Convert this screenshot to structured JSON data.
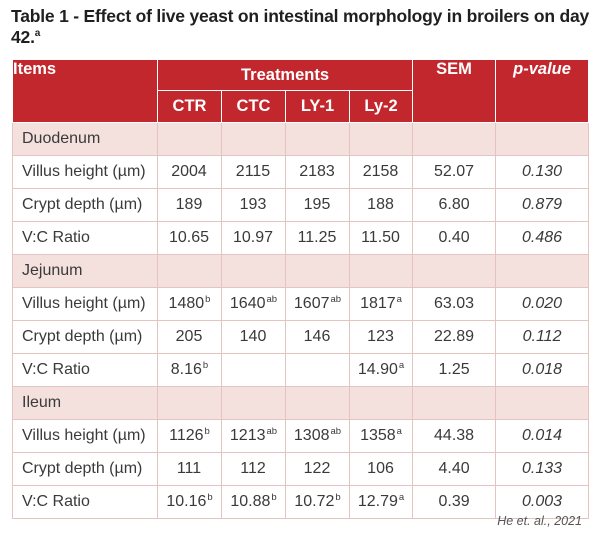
{
  "title": {
    "text": "Table 1 - Effect of live yeast on intestinal morphology in broilers on day 42.",
    "sup": "a"
  },
  "header": {
    "items": "Items",
    "treatments": "Treatments",
    "sem": "SEM",
    "pvalue": "p-value",
    "cols": [
      "CTR",
      "CTC",
      "LY-1",
      "Ly-2"
    ]
  },
  "sections": [
    {
      "name": "Duodenum",
      "rows": [
        {
          "label": "Villus height (µm)",
          "cells": [
            {
              "v": "2004",
              "s": ""
            },
            {
              "v": "2115",
              "s": ""
            },
            {
              "v": "2183",
              "s": ""
            },
            {
              "v": "2158",
              "s": ""
            }
          ],
          "sem": "52.07",
          "p": "0.130"
        },
        {
          "label": "Crypt depth (µm)",
          "cells": [
            {
              "v": "189",
              "s": ""
            },
            {
              "v": "193",
              "s": ""
            },
            {
              "v": "195",
              "s": ""
            },
            {
              "v": "188",
              "s": ""
            }
          ],
          "sem": "6.80",
          "p": "0.879"
        },
        {
          "label": "V:C Ratio",
          "cells": [
            {
              "v": "10.65",
              "s": ""
            },
            {
              "v": "10.97",
              "s": ""
            },
            {
              "v": "11.25",
              "s": ""
            },
            {
              "v": "11.50",
              "s": ""
            }
          ],
          "sem": "0.40",
          "p": "0.486"
        }
      ]
    },
    {
      "name": "Jejunum",
      "rows": [
        {
          "label": "Villus height (µm)",
          "cells": [
            {
              "v": "1480",
              "s": "b"
            },
            {
              "v": "1640",
              "s": "ab"
            },
            {
              "v": "1607",
              "s": "ab"
            },
            {
              "v": "1817",
              "s": "a"
            }
          ],
          "sem": "63.03",
          "p": "0.020"
        },
        {
          "label": "Crypt depth (µm)",
          "cells": [
            {
              "v": "205",
              "s": ""
            },
            {
              "v": "140",
              "s": ""
            },
            {
              "v": "146",
              "s": ""
            },
            {
              "v": "123",
              "s": ""
            }
          ],
          "sem": "22.89",
          "p": "0.112"
        },
        {
          "label": "V:C Ratio",
          "cells": [
            {
              "v": "8.16",
              "s": "b"
            },
            {
              "v": "",
              "s": ""
            },
            {
              "v": "",
              "s": ""
            },
            {
              "v": "14.90",
              "s": "a"
            }
          ],
          "sem": "1.25",
          "p": "0.018"
        }
      ]
    },
    {
      "name": "Ileum",
      "rows": [
        {
          "label": "Villus height (µm)",
          "cells": [
            {
              "v": "1126",
              "s": "b"
            },
            {
              "v": "1213",
              "s": "ab"
            },
            {
              "v": "1308",
              "s": "ab"
            },
            {
              "v": "1358",
              "s": "a"
            }
          ],
          "sem": "44.38",
          "p": "0.014"
        },
        {
          "label": "Crypt depth (µm)",
          "cells": [
            {
              "v": "111",
              "s": ""
            },
            {
              "v": "112",
              "s": ""
            },
            {
              "v": "122",
              "s": ""
            },
            {
              "v": "106",
              "s": ""
            }
          ],
          "sem": "4.40",
          "p": "0.133"
        },
        {
          "label": "V:C Ratio",
          "cells": [
            {
              "v": "10.16",
              "s": "b"
            },
            {
              "v": "10.88",
              "s": "b"
            },
            {
              "v": "10.72",
              "s": "b"
            },
            {
              "v": "12.79",
              "s": "a"
            }
          ],
          "sem": "0.39",
          "p": "0.003"
        }
      ]
    }
  ],
  "citation": "He et. al., 2021",
  "colors": {
    "header_bg": "#c1272d",
    "section_bg": "#f4e0dc",
    "grid": "#e3c4c0"
  }
}
